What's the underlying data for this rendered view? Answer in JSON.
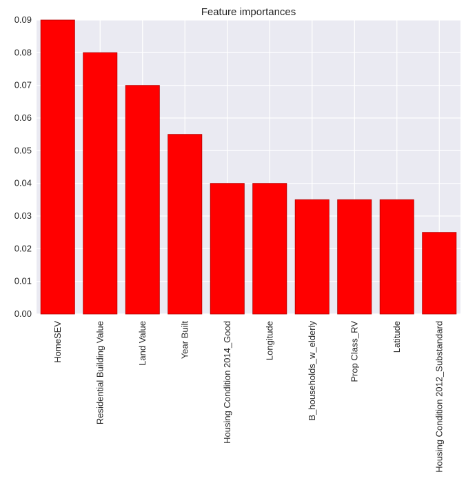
{
  "chart_data": {
    "type": "bar",
    "title": "Feature importances",
    "xlabel": "",
    "ylabel": "",
    "categories": [
      "HomeSEV",
      "Residential Building Value",
      "Land Value",
      "Year Built",
      "Housing Condition 2014_Good",
      "Longitude",
      "B_households_w_elderly",
      "Prop Class_RV",
      "Latitude",
      "Housing Condition 2012_Substandard"
    ],
    "values": [
      0.09,
      0.08,
      0.07,
      0.055,
      0.04,
      0.04,
      0.035,
      0.035,
      0.035,
      0.025
    ],
    "ylim": [
      0,
      0.09
    ],
    "yticks": [
      "0.00",
      "0.01",
      "0.02",
      "0.03",
      "0.04",
      "0.05",
      "0.06",
      "0.07",
      "0.08",
      "0.09"
    ],
    "grid": true,
    "legend": "none",
    "colors": {
      "bar_fill": "#ff0000",
      "bar_edge": "#b00000",
      "plot_background": "#eaeaf2",
      "grid": "#ffffff",
      "text": "#262626"
    }
  }
}
